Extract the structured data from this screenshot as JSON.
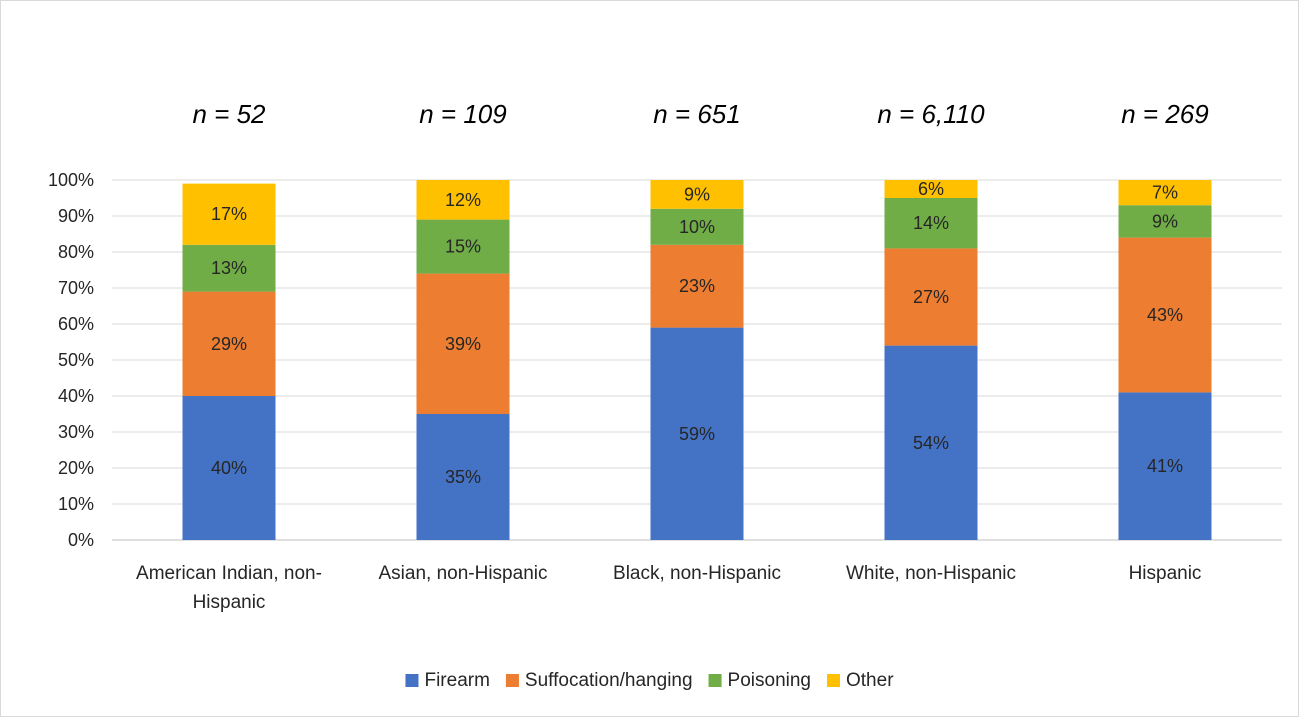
{
  "chart_data": {
    "type": "bar",
    "stacked": true,
    "categories": [
      [
        "American Indian, non-",
        "Hispanic"
      ],
      [
        "Asian, non-Hispanic"
      ],
      [
        "Black, non-Hispanic"
      ],
      [
        "White, non-Hispanic"
      ],
      [
        "Hispanic"
      ]
    ],
    "n_labels": [
      "n = 52",
      "n = 109",
      "n = 651",
      "n = 6,110",
      "n = 269"
    ],
    "series": [
      {
        "name": "Firearm",
        "color": "#4472C4",
        "values": [
          40,
          35,
          59,
          54,
          41
        ],
        "labels": [
          "40%",
          "35%",
          "59%",
          "54%",
          "41%"
        ]
      },
      {
        "name": "Suffocation/hanging",
        "color": "#ED7D31",
        "values": [
          29,
          39,
          23,
          27,
          43
        ],
        "labels": [
          "29%",
          "39%",
          "23%",
          "27%",
          "43%"
        ]
      },
      {
        "name": "Poisoning",
        "color": "#70AD47",
        "values": [
          13,
          15,
          10,
          14,
          9
        ],
        "labels": [
          "13%",
          "15%",
          "10%",
          "14%",
          "9%"
        ]
      },
      {
        "name": "Other",
        "color": "#FFC000",
        "values": [
          17,
          12,
          9,
          6,
          7
        ],
        "labels": [
          "17%",
          "12%",
          "9%",
          "6%",
          "7%"
        ]
      }
    ],
    "y_ticks": [
      "0%",
      "10%",
      "20%",
      "30%",
      "40%",
      "50%",
      "60%",
      "70%",
      "80%",
      "90%",
      "100%"
    ],
    "ylim": [
      0,
      100
    ],
    "grid": true,
    "legend_position": "bottom",
    "title": "",
    "xlabel": "",
    "ylabel": ""
  }
}
